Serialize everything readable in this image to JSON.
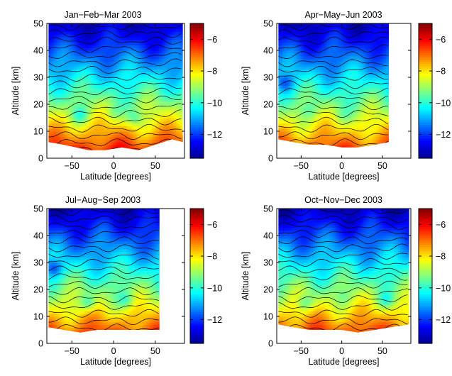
{
  "figure": {
    "background": "#ffffff"
  },
  "colormap": [
    "#00008f",
    "#0000ff",
    "#0080ff",
    "#00ffff",
    "#80ff80",
    "#ffff00",
    "#ff8000",
    "#ff0000",
    "#800000"
  ],
  "chart_data": [
    {
      "type": "heatmap",
      "title": "Jan−Feb−Mar 2003",
      "xlabel": "Latitude [degrees]",
      "ylabel": "Altitude [km]",
      "xlim": [
        -80,
        85
      ],
      "ylim": [
        0,
        50
      ],
      "xticks": [
        -50,
        0,
        50
      ],
      "yticks": [
        0,
        10,
        20,
        30,
        40,
        50
      ],
      "colorbar": {
        "range": [
          -13.5,
          -5
        ],
        "ticks": [
          -6,
          -8,
          -10,
          -12
        ]
      },
      "data_lat_range": [
        -78,
        83
      ],
      "lower_boundary": [
        [
          -78,
          6
        ],
        [
          -60,
          5
        ],
        [
          -45,
          4
        ],
        [
          -30,
          3
        ],
        [
          -10,
          3
        ],
        [
          10,
          4
        ],
        [
          30,
          3
        ],
        [
          50,
          5
        ],
        [
          70,
          7
        ],
        [
          83,
          6
        ]
      ],
      "value_at_top": -13,
      "value_at_bottom": -5.5,
      "features": [
        {
          "lat": 0,
          "alt": 17,
          "value": -9.2
        },
        {
          "lat": 25,
          "alt": 15,
          "value": -9.4
        },
        {
          "lat": -40,
          "alt": 16,
          "value": -9.6
        }
      ]
    },
    {
      "type": "heatmap",
      "title": "Apr−May−Jun 2003",
      "xlabel": "Latitude [degrees]",
      "ylabel": "Altitude [km]",
      "xlim": [
        -80,
        85
      ],
      "ylim": [
        0,
        50
      ],
      "xticks": [
        -50,
        0,
        50
      ],
      "yticks": [
        0,
        10,
        20,
        30,
        40,
        50
      ],
      "colorbar": {
        "range": [
          -13.5,
          -5
        ],
        "ticks": [
          -6,
          -8,
          -10,
          -12
        ]
      },
      "data_lat_range": [
        -78,
        58
      ],
      "lower_boundary": [
        [
          -78,
          7
        ],
        [
          -60,
          6
        ],
        [
          -40,
          5
        ],
        [
          -20,
          5
        ],
        [
          0,
          4
        ],
        [
          20,
          4
        ],
        [
          40,
          5
        ],
        [
          58,
          6
        ]
      ],
      "value_at_top": -13,
      "value_at_bottom": -5.8,
      "features": [
        {
          "lat": 2,
          "alt": 16,
          "value": -9.0
        },
        {
          "lat": -70,
          "alt": 28,
          "value": -11.5
        },
        {
          "lat": -40,
          "alt": 18,
          "value": -9.5
        }
      ]
    },
    {
      "type": "heatmap",
      "title": "Jul−Aug−Sep 2003",
      "xlabel": "Latitude [degrees]",
      "ylabel": "Altitude [km]",
      "xlim": [
        -80,
        85
      ],
      "ylim": [
        0,
        50
      ],
      "xticks": [
        -50,
        0,
        50
      ],
      "yticks": [
        0,
        10,
        20,
        30,
        40,
        50
      ],
      "colorbar": {
        "range": [
          -13.5,
          -5
        ],
        "ticks": [
          -6,
          -8,
          -10,
          -12
        ]
      },
      "data_lat_range": [
        -78,
        55
      ],
      "lower_boundary": [
        [
          -78,
          6
        ],
        [
          -60,
          5
        ],
        [
          -40,
          4
        ],
        [
          -20,
          5
        ],
        [
          0,
          5
        ],
        [
          20,
          5
        ],
        [
          40,
          5
        ],
        [
          55,
          5
        ]
      ],
      "value_at_top": -13,
      "value_at_bottom": -5.7,
      "features": [
        {
          "lat": -72,
          "alt": 28,
          "value": -11.8
        },
        {
          "lat": -30,
          "alt": 15,
          "value": -9.8
        },
        {
          "lat": 15,
          "alt": 16,
          "value": -9.6
        }
      ]
    },
    {
      "type": "heatmap",
      "title": "Oct−Nov−Dec 2003",
      "xlabel": "Latitude [degrees]",
      "ylabel": "Altitude [km]",
      "xlim": [
        -80,
        85
      ],
      "ylim": [
        0,
        50
      ],
      "xticks": [
        -50,
        0,
        50
      ],
      "yticks": [
        0,
        10,
        20,
        30,
        40,
        50
      ],
      "colorbar": {
        "range": [
          -13.5,
          -5
        ],
        "ticks": [
          -6,
          -8,
          -10,
          -12
        ]
      },
      "data_lat_range": [
        -78,
        83
      ],
      "lower_boundary": [
        [
          -78,
          7
        ],
        [
          -60,
          6
        ],
        [
          -40,
          5
        ],
        [
          -20,
          5
        ],
        [
          0,
          5
        ],
        [
          20,
          4
        ],
        [
          40,
          5
        ],
        [
          60,
          6
        ],
        [
          83,
          7
        ]
      ],
      "value_at_top": -13,
      "value_at_bottom": -5.6,
      "features": [
        {
          "lat": 2,
          "alt": 17,
          "value": -9.1
        },
        {
          "lat": -45,
          "alt": 15,
          "value": -9.5
        },
        {
          "lat": 55,
          "alt": 16,
          "value": -9.6
        }
      ]
    }
  ]
}
